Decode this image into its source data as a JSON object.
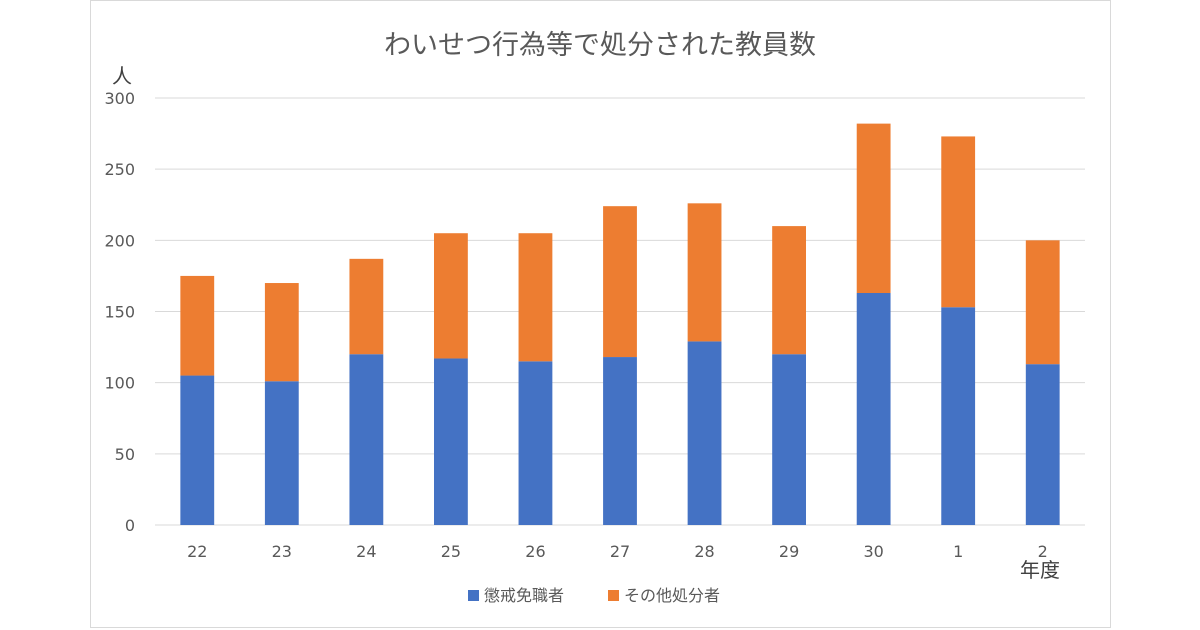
{
  "chart_data": {
    "type": "bar",
    "stacked": true,
    "title": "わいせつ行為等で処分された教員数",
    "ylabel": "人",
    "xlabel": "年度",
    "categories": [
      "22",
      "23",
      "24",
      "25",
      "26",
      "27",
      "28",
      "29",
      "30",
      "1",
      "2"
    ],
    "series": [
      {
        "name": "懲戒免職者",
        "color": "#4472c4",
        "values": [
          105,
          101,
          120,
          117,
          115,
          118,
          129,
          120,
          163,
          153,
          113
        ]
      },
      {
        "name": "その他処分者",
        "color": "#ed7d31",
        "values": [
          70,
          69,
          67,
          88,
          90,
          106,
          97,
          90,
          119,
          120,
          87
        ]
      }
    ],
    "ylim": [
      0,
      300
    ],
    "yticks": [
      0,
      50,
      100,
      150,
      200,
      250,
      300
    ],
    "grid": true,
    "legend_position": "bottom"
  }
}
